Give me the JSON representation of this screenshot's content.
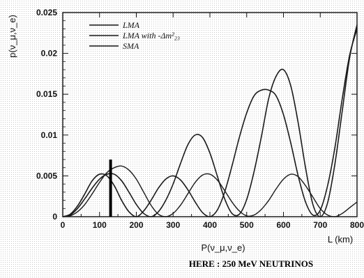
{
  "chart_data": {
    "type": "line",
    "ylabel": "p(ν_μ,ν_e)",
    "xlabel_sub": "P(ν_μ,ν_e)",
    "xlabel": "L (km)",
    "caption": "HERE : 250 MeV NEUTRINOS",
    "xlim": [
      0,
      800
    ],
    "ylim": [
      0,
      0.025
    ],
    "x_ticks": [
      0,
      100,
      200,
      300,
      400,
      500,
      600,
      700,
      800
    ],
    "y_ticks": [
      0,
      0.005,
      0.01,
      0.015,
      0.02,
      0.025
    ],
    "y_tick_labels": [
      "0",
      "0.005",
      "0.01",
      "0.015",
      "0.02",
      "0.025"
    ],
    "legend_position": "top-left",
    "marker_x": 130,
    "marker_ymax": 0.007,
    "series": [
      {
        "name": "LMA",
        "x": [
          0,
          20,
          40,
          60,
          80,
          100,
          120,
          140,
          160,
          180,
          200,
          220,
          240,
          260,
          280,
          300,
          320,
          340,
          360,
          380,
          400,
          420,
          440,
          460,
          480,
          500,
          520,
          540,
          560,
          580,
          600,
          620,
          640,
          660,
          680,
          700,
          720,
          740,
          760,
          780,
          800
        ],
        "y": [
          0,
          0.0002,
          0.001,
          0.0022,
          0.0035,
          0.0046,
          0.0052,
          0.0052,
          0.0044,
          0.003,
          0.0015,
          0.0004,
          0,
          0.0006,
          0.002,
          0.004,
          0.0065,
          0.0088,
          0.01,
          0.0097,
          0.0078,
          0.005,
          0.0022,
          0.0004,
          0.0003,
          0.0021,
          0.0055,
          0.0098,
          0.0145,
          0.0172,
          0.018,
          0.016,
          0.0115,
          0.006,
          0.0015,
          0,
          0.0017,
          0.0065,
          0.013,
          0.0195,
          0.0235
        ]
      },
      {
        "name": "LMA with -Δm²₂₃",
        "x": [
          0,
          20,
          40,
          60,
          80,
          100,
          120,
          140,
          160,
          180,
          200,
          220,
          240,
          260,
          280,
          300,
          320,
          340,
          360,
          380,
          400,
          420,
          440,
          460,
          480,
          500,
          520,
          540,
          560,
          580,
          600,
          620,
          640,
          660,
          680,
          700,
          720,
          740,
          760,
          780,
          800
        ],
        "y": [
          0,
          0.0003,
          0.0013,
          0.0028,
          0.0044,
          0.0052,
          0.005,
          0.0038,
          0.002,
          0.0006,
          0,
          0.0007,
          0.002,
          0.0035,
          0.0046,
          0.005,
          0.0045,
          0.0033,
          0.0018,
          0.0005,
          0,
          0.0008,
          0.003,
          0.0062,
          0.0097,
          0.0127,
          0.0148,
          0.0155,
          0.0155,
          0.0148,
          0.0125,
          0.009,
          0.005,
          0.0018,
          0.0002,
          0.0008,
          0.0038,
          0.0085,
          0.0145,
          0.0198,
          0.023
        ]
      },
      {
        "name": "SMA",
        "x": [
          0,
          20,
          40,
          60,
          80,
          100,
          120,
          140,
          160,
          180,
          200,
          220,
          240,
          260,
          280,
          300,
          320,
          340,
          360,
          380,
          400,
          420,
          440,
          460,
          480,
          500,
          520,
          540,
          560,
          580,
          600,
          620,
          640,
          660,
          680,
          700,
          720,
          740,
          760,
          780,
          800
        ],
        "y": [
          0,
          0.0001,
          0.0006,
          0.0015,
          0.0028,
          0.0042,
          0.0054,
          0.006,
          0.0062,
          0.0057,
          0.0046,
          0.003,
          0.0014,
          0.0003,
          0,
          0.0004,
          0.0014,
          0.0028,
          0.0042,
          0.0051,
          0.0052,
          0.0045,
          0.0032,
          0.0018,
          0.0007,
          0.0001,
          0.0002,
          0.0009,
          0.002,
          0.0034,
          0.0046,
          0.0052,
          0.0049,
          0.0038,
          0.0024,
          0.001,
          0.0002,
          0,
          0.0004,
          0.0011,
          0.0018
        ]
      }
    ]
  }
}
